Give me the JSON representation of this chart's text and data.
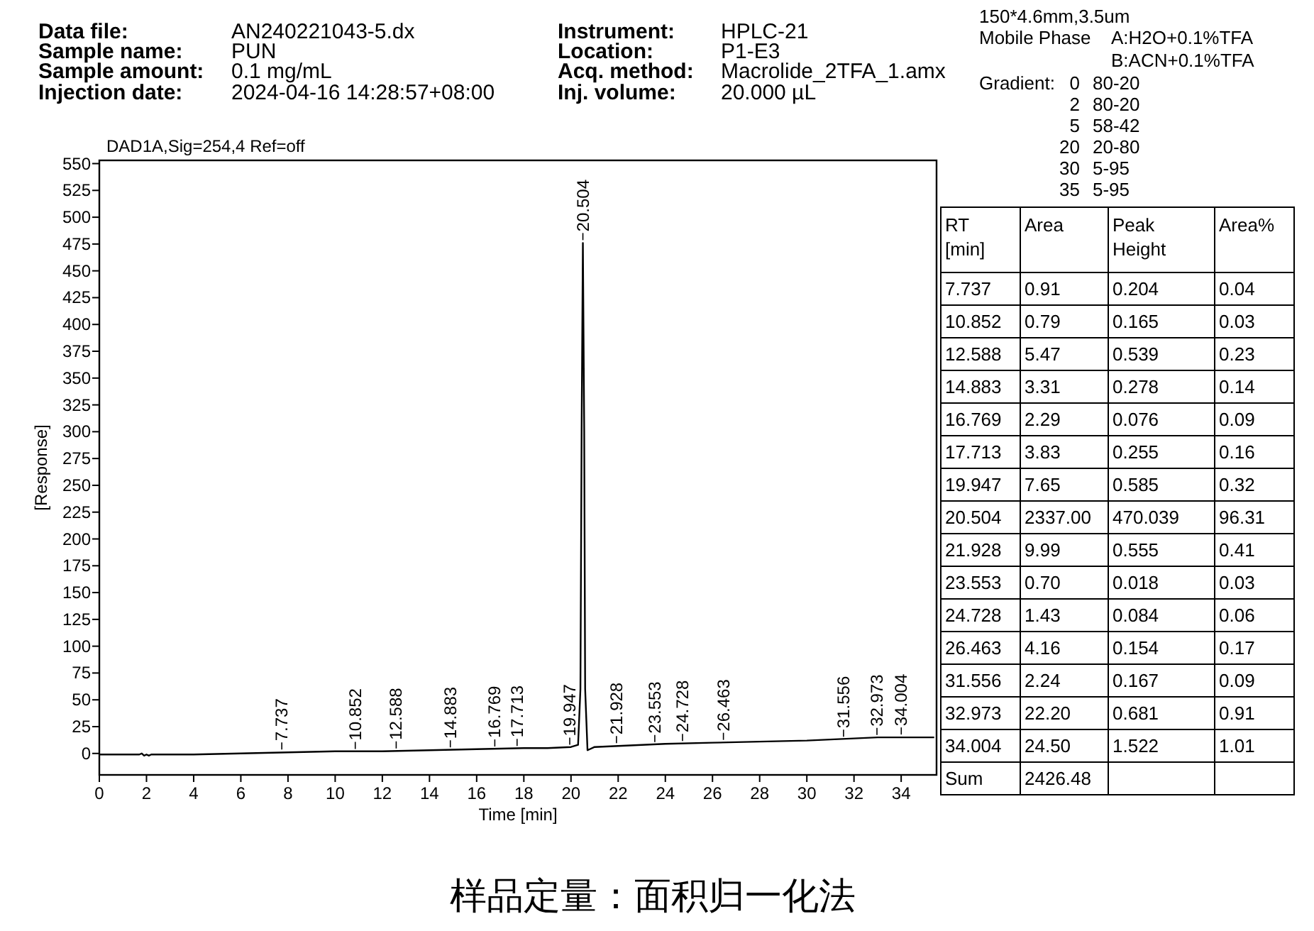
{
  "chart_data": [
    {
      "type": "other",
      "annotations": [
        "Data file:",
        "AN240221043-5.dx",
        "Sample name:",
        "PUN",
        "Sample amount:",
        "0.1 mg/mL",
        "Injection date:",
        "2024-04-16 14:28:57+08:00",
        "Instrument:",
        "HPLC-21",
        "Location:",
        "P1-E3",
        "Acq. method:",
        "Macrolide_2TFA_1.amx",
        "Inj. volume:",
        "20.000 µL",
        "150*4.6mm,3.5um",
        "Mobile Phase",
        "A:H2O+0.1%TFA",
        "B:ACN+0.1%TFA",
        "Gradient:",
        "0",
        "80-20",
        "2",
        "80-20",
        "5",
        "58-42",
        "20",
        "20-80",
        "30",
        "5-95",
        "35",
        "5-95",
        "样品定量：面积归一化法"
      ]
    },
    {
      "type": "line",
      "title": "DAD1A,Sig=254,4  Ref=off",
      "xlabel": "Time [min]",
      "ylabel": "[Response]",
      "x": [
        0,
        1.7,
        1.8,
        1.9,
        2.0,
        2.1,
        2.2,
        2.4,
        4,
        6,
        8,
        10,
        12,
        14,
        16,
        18,
        19,
        20,
        20.3,
        20.4,
        20.45,
        20.504,
        20.56,
        20.6,
        20.7,
        20.8,
        21,
        22,
        24,
        26,
        28,
        30,
        32,
        33,
        34,
        35.4
      ],
      "series": [
        {
          "color": "#000000",
          "values": [
            -1,
            -1,
            0,
            -2,
            -1,
            -2,
            -1,
            -1,
            -1,
            0,
            1,
            2,
            2,
            3,
            4,
            5,
            5,
            6,
            8,
            60,
            300,
            476,
            300,
            60,
            3,
            4,
            6,
            7,
            9,
            10,
            11,
            12,
            14,
            15,
            15,
            15
          ]
        }
      ],
      "xlim": [
        0,
        35.5
      ],
      "ylim": [
        -20,
        553
      ],
      "xticks": [
        0,
        2,
        4,
        6,
        8,
        10,
        12,
        14,
        16,
        18,
        20,
        22,
        24,
        26,
        28,
        30,
        32,
        34
      ],
      "yticks": [
        0,
        25,
        50,
        75,
        100,
        125,
        150,
        175,
        200,
        225,
        250,
        275,
        300,
        325,
        350,
        375,
        400,
        425,
        450,
        475,
        500,
        525,
        550
      ],
      "grid": false,
      "annotations": [
        {
          "text": "7.737",
          "x": 7.737,
          "y": 1
        },
        {
          "text": "10.852",
          "x": 10.852,
          "y": 1.5
        },
        {
          "text": "12.588",
          "x": 12.588,
          "y": 2
        },
        {
          "text": "14.883",
          "x": 14.883,
          "y": 3
        },
        {
          "text": "16.769",
          "x": 16.769,
          "y": 3.8
        },
        {
          "text": "17.713",
          "x": 17.713,
          "y": 4.3
        },
        {
          "text": "19.947",
          "x": 19.947,
          "y": 5.5
        },
        {
          "text": "20.504",
          "x": 20.504,
          "y": 476
        },
        {
          "text": "21.928",
          "x": 21.928,
          "y": 7
        },
        {
          "text": "23.553",
          "x": 23.553,
          "y": 8
        },
        {
          "text": "24.728",
          "x": 24.728,
          "y": 9
        },
        {
          "text": "26.463",
          "x": 26.463,
          "y": 10
        },
        {
          "text": "31.556",
          "x": 31.556,
          "y": 13
        },
        {
          "text": "32.973",
          "x": 32.973,
          "y": 14.5
        },
        {
          "text": "34.004",
          "x": 34.004,
          "y": 15
        }
      ]
    },
    {
      "type": "other",
      "categories": [
        "RT [min]",
        "Area",
        "Peak Height",
        "Area%"
      ],
      "annotations": [
        "7.737",
        "0.91",
        "0.204",
        "0.04",
        "10.852",
        "0.79",
        "0.165",
        "0.03",
        "12.588",
        "5.47",
        "0.539",
        "0.23",
        "14.883",
        "3.31",
        "0.278",
        "0.14",
        "16.769",
        "2.29",
        "0.076",
        "0.09",
        "17.713",
        "3.83",
        "0.255",
        "0.16",
        "19.947",
        "7.65",
        "0.585",
        "0.32",
        "20.504",
        "2337.00",
        "470.039",
        "96.31",
        "21.928",
        "9.99",
        "0.555",
        "0.41",
        "23.553",
        "0.70",
        "0.018",
        "0.03",
        "24.728",
        "1.43",
        "0.084",
        "0.06",
        "26.463",
        "4.16",
        "0.154",
        "0.17",
        "31.556",
        "2.24",
        "0.167",
        "0.09",
        "32.973",
        "22.20",
        "0.681",
        "0.91",
        "34.004",
        "24.50",
        "1.522",
        "1.01",
        "Sum",
        "2426.48"
      ]
    }
  ]
}
